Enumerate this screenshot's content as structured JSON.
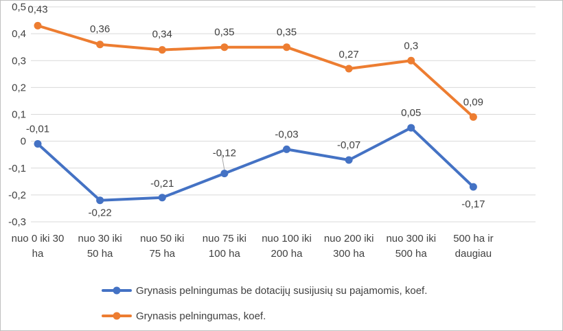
{
  "chart_data": {
    "type": "line",
    "title": "",
    "xlabel": "",
    "ylabel": "",
    "ylim": [
      -0.3,
      0.5
    ],
    "grid": true,
    "legend_position": "bottom",
    "y_ticks": [
      "-0,3",
      "-0,2",
      "-0,1",
      "0",
      "0,1",
      "0,2",
      "0,3",
      "0,4",
      "0,5"
    ],
    "categories": [
      [
        "nuo 0 iki 30",
        "ha"
      ],
      [
        "nuo 30 iki",
        "50 ha"
      ],
      [
        "nuo 50 iki",
        "75 ha"
      ],
      [
        "nuo 75 iki",
        "100 ha"
      ],
      [
        "nuo 100 iki",
        "200 ha"
      ],
      [
        "nuo 200 iki",
        "300 ha"
      ],
      [
        "nuo 300 iki",
        "500 ha"
      ],
      [
        "500 ha ir",
        "daugiau"
      ]
    ],
    "series": [
      {
        "name": "Grynasis pelningumas be dotacijų susijusių su pajamomis, koef.",
        "color": "#4472c4",
        "values": [
          -0.01,
          -0.22,
          -0.21,
          -0.12,
          -0.03,
          -0.07,
          0.05,
          -0.17
        ],
        "labels": [
          "-0,01",
          "-0,22",
          "-0,21",
          "-0,12",
          "-0,03",
          "-0,07",
          "0,05",
          "-0,17"
        ]
      },
      {
        "name": "Grynasis pelningumas, koef.",
        "color": "#ed7d31",
        "values": [
          0.43,
          0.36,
          0.34,
          0.35,
          0.35,
          0.27,
          0.3,
          0.09
        ],
        "labels": [
          "0,43",
          "0,36",
          "0,34",
          "0,35",
          "0,35",
          "0,27",
          "0,3",
          "0,09"
        ]
      }
    ]
  }
}
